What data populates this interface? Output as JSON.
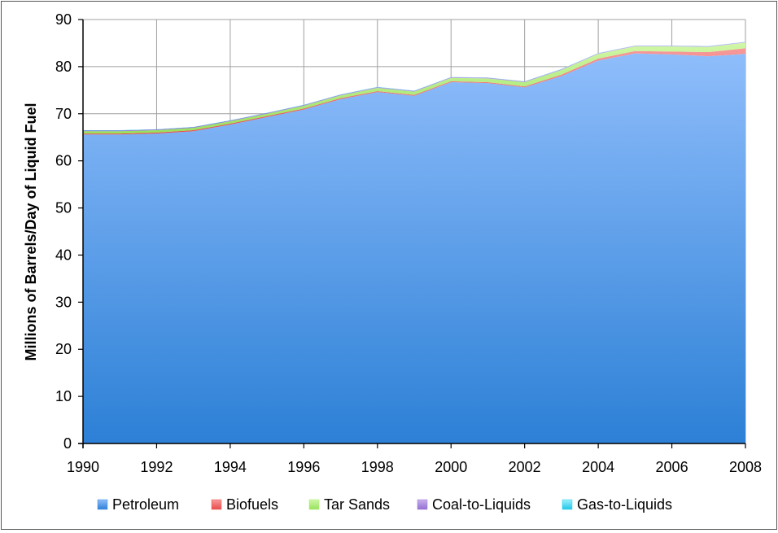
{
  "chart_data": {
    "type": "area",
    "stacked": true,
    "title": "",
    "xlabel": "",
    "ylabel": "Millions of Barrels/Day of Liquid Fuel",
    "xlim": [
      1990,
      2008
    ],
    "ylim": [
      0,
      90
    ],
    "x_ticks": [
      1990,
      1992,
      1994,
      1996,
      1998,
      2000,
      2002,
      2004,
      2006,
      2008
    ],
    "y_ticks": [
      0,
      10,
      20,
      30,
      40,
      50,
      60,
      70,
      80,
      90
    ],
    "grid": true,
    "legend_position": "bottom",
    "x": [
      1990,
      1991,
      1992,
      1993,
      1994,
      1995,
      1996,
      1997,
      1998,
      1999,
      2000,
      2001,
      2002,
      2003,
      2004,
      2005,
      2006,
      2007,
      2008
    ],
    "series": [
      {
        "name": "Petroleum",
        "color": "#4f94e6",
        "values": [
          65.6,
          65.6,
          65.8,
          66.3,
          67.7,
          69.3,
          70.9,
          73.1,
          74.6,
          73.8,
          76.7,
          76.5,
          75.6,
          78.0,
          81.3,
          82.8,
          82.6,
          82.2,
          82.7
        ]
      },
      {
        "name": "Biofuels",
        "color": "#ef5b5b",
        "values": [
          0.2,
          0.2,
          0.2,
          0.2,
          0.2,
          0.2,
          0.2,
          0.2,
          0.2,
          0.2,
          0.2,
          0.2,
          0.2,
          0.3,
          0.4,
          0.5,
          0.6,
          0.9,
          1.2
        ]
      },
      {
        "name": "Tar Sands",
        "color": "#a6ec6e",
        "values": [
          0.5,
          0.5,
          0.5,
          0.5,
          0.5,
          0.5,
          0.6,
          0.6,
          0.7,
          0.7,
          0.7,
          0.8,
          0.9,
          1.0,
          1.0,
          1.0,
          1.1,
          1.1,
          1.2
        ]
      },
      {
        "name": "Coal-to-Liquids",
        "color": "#a27ed6",
        "values": [
          0.15,
          0.15,
          0.15,
          0.15,
          0.15,
          0.15,
          0.15,
          0.15,
          0.15,
          0.15,
          0.15,
          0.15,
          0.15,
          0.15,
          0.15,
          0.15,
          0.15,
          0.15,
          0.15
        ]
      },
      {
        "name": "Gas-to-Liquids",
        "color": "#2fd4ec",
        "values": [
          0.05,
          0.05,
          0.05,
          0.05,
          0.05,
          0.05,
          0.05,
          0.05,
          0.05,
          0.05,
          0.05,
          0.05,
          0.05,
          0.05,
          0.05,
          0.05,
          0.05,
          0.05,
          0.05
        ]
      }
    ]
  }
}
